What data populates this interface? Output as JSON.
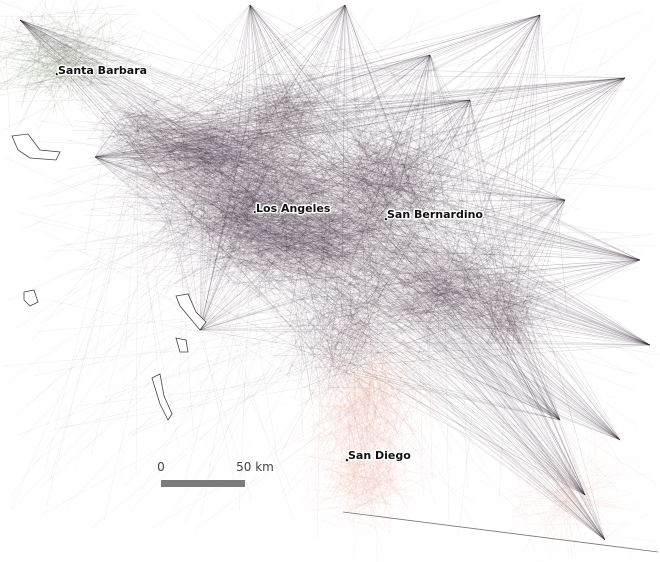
{
  "map": {
    "places": [
      {
        "label": "Santa Barbara"
      },
      {
        "label": "Los Angeles"
      },
      {
        "label": "San Bernardino"
      },
      {
        "label": "San Diego"
      }
    ],
    "scale_bar": {
      "start_label": "0",
      "end_label": "50 km"
    }
  }
}
